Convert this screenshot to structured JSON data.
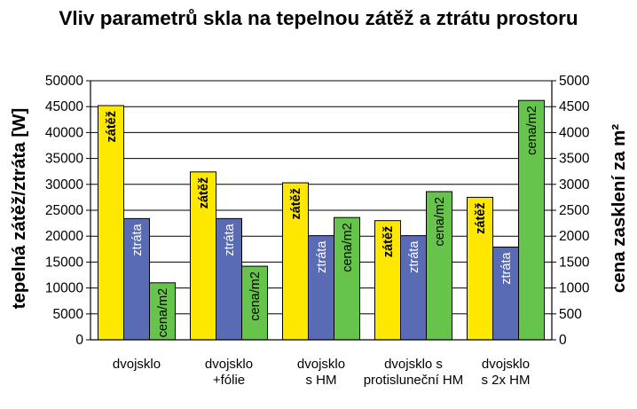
{
  "chart_data": {
    "type": "bar",
    "title": "Vliv parametrů skla na tepelnou zátěž a ztrátu prostoru",
    "ylabel": "tepelná zátěž/ztráta [W]",
    "y2label": "cena zasklení za m²",
    "ylim": [
      0,
      50000
    ],
    "y2lim": [
      0,
      5000
    ],
    "yticks": [
      "0",
      "5000",
      "10000",
      "15000",
      "20000",
      "25000",
      "30000",
      "35000",
      "40000",
      "45000",
      "50000"
    ],
    "y2ticks": [
      "0",
      "500",
      "1000",
      "1500",
      "2000",
      "2500",
      "3000",
      "3500",
      "4000",
      "4500",
      "5000"
    ],
    "grid": true,
    "categories": [
      [
        "dvojsklo"
      ],
      [
        "dvojsklo",
        "+fólie"
      ],
      [
        "dvojsklo",
        "s HM"
      ],
      [
        "dvojsklo s",
        "protisluneční HM"
      ],
      [
        "dvojsklo",
        "s 2x HM"
      ]
    ],
    "series": [
      {
        "name": "zátěž",
        "axis": "left",
        "color": "#FFE800",
        "labelColor": "#000000",
        "values": [
          45200,
          32400,
          30300,
          23000,
          27500
        ]
      },
      {
        "name": "ztráta",
        "axis": "left",
        "color": "#5A6BB6",
        "labelColor": "#FFFFFF",
        "values": [
          23400,
          23400,
          20100,
          20100,
          17900
        ]
      },
      {
        "name": "cena/m2",
        "axis": "right",
        "color": "#66C34C",
        "labelColor": "#000000",
        "values": [
          1100,
          1420,
          2360,
          2860,
          4620
        ]
      }
    ]
  }
}
